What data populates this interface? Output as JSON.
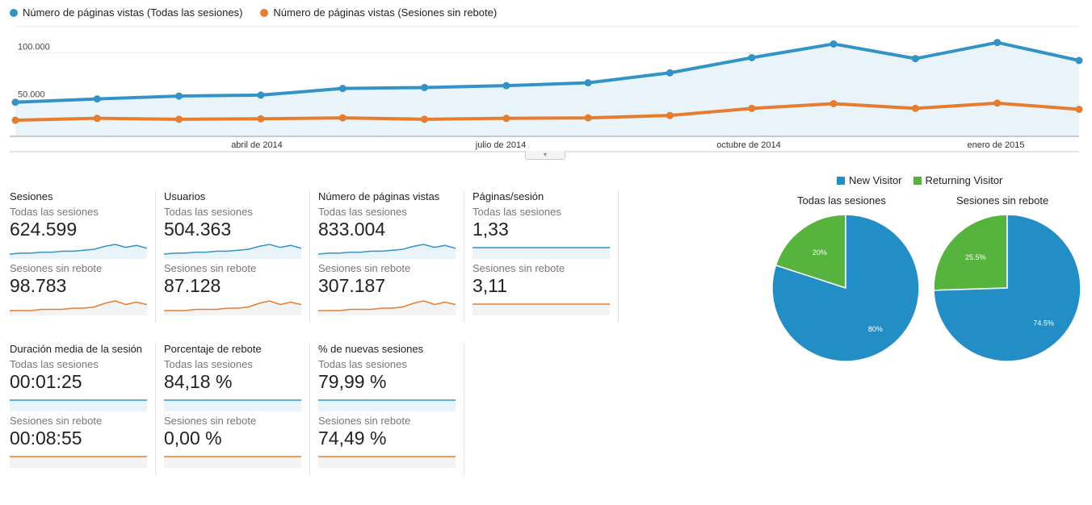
{
  "legend": {
    "series1": "Número de páginas vistas (Todas las sesiones)",
    "series2": "Número de páginas vistas (Sesiones sin rebote)"
  },
  "colors": {
    "blue": "#3393c7",
    "orange": "#e47d30",
    "pie_blue": "#238ec6",
    "pie_green": "#56b33d",
    "area": "#e9f3fa"
  },
  "chart_data": {
    "type": "line",
    "x_labels": [
      "abril de 2014",
      "julio de 2014",
      "octubre de 2014",
      "enero de 2015"
    ],
    "y_ticks": [
      "100.000",
      "50.000"
    ],
    "y_tick_values": [
      100000,
      50000
    ],
    "series": [
      {
        "name": "Número de páginas vistas (Todas las sesiones)",
        "values": [
          36000,
          39500,
          42500,
          43500,
          50500,
          51500,
          53500,
          56500,
          67000,
          83000,
          97500,
          82000,
          99000,
          80000
        ]
      },
      {
        "name": "Número de páginas vistas (Sesiones sin rebote)",
        "values": [
          17000,
          19000,
          18000,
          18500,
          19500,
          18000,
          19000,
          19500,
          22000,
          29500,
          34500,
          29500,
          35000,
          28500
        ]
      }
    ]
  },
  "metrics": [
    {
      "name": "Sesiones",
      "seg_all": "Todas las sesiones",
      "val_all": "624.599",
      "seg_nb": "Sesiones sin rebote",
      "val_nb": "98.783",
      "spark_all": [
        2,
        3,
        3,
        4,
        4,
        5,
        5,
        6,
        7,
        10,
        12,
        9,
        11,
        8
      ],
      "spark_nb": [
        2,
        2,
        2,
        3,
        3,
        3,
        4,
        4,
        5,
        8,
        10,
        7,
        9,
        7
      ]
    },
    {
      "name": "Usuarios",
      "seg_all": "Todas las sesiones",
      "val_all": "504.363",
      "seg_nb": "Sesiones sin rebote",
      "val_nb": "87.128",
      "spark_all": [
        2,
        3,
        3,
        4,
        4,
        5,
        5,
        6,
        7,
        10,
        12,
        9,
        11,
        8
      ],
      "spark_nb": [
        2,
        2,
        2,
        3,
        3,
        3,
        4,
        4,
        5,
        8,
        10,
        7,
        9,
        7
      ]
    },
    {
      "name": "Número de páginas vistas",
      "seg_all": "Todas las sesiones",
      "val_all": "833.004",
      "seg_nb": "Sesiones sin rebote",
      "val_nb": "307.187",
      "spark_all": [
        2,
        3,
        3,
        4,
        4,
        5,
        5,
        6,
        7,
        10,
        12,
        9,
        11,
        8
      ],
      "spark_nb": [
        2,
        2,
        2,
        3,
        3,
        3,
        4,
        4,
        5,
        8,
        10,
        7,
        9,
        7
      ]
    },
    {
      "name": "Páginas/sesión",
      "seg_all": "Todas las sesiones",
      "val_all": "1,33",
      "seg_nb": "Sesiones sin rebote",
      "val_nb": "3,11",
      "spark_all": [
        6,
        6,
        6,
        5.8,
        5.8,
        5.8,
        5.7,
        5.7,
        5.7,
        5.7,
        5.6,
        5.6,
        5.6,
        5.6
      ],
      "spark_nb": [
        6,
        6,
        6,
        5.9,
        5.9,
        5.8,
        5.8,
        5.7,
        5.7,
        5.6,
        5.6,
        5.5,
        5.5,
        5.4
      ]
    },
    {
      "name": "Duración media de la sesión",
      "seg_all": "Todas las sesiones",
      "val_all": "00:01:25",
      "seg_nb": "Sesiones sin rebote",
      "val_nb": "00:08:55",
      "spark_all": [
        6,
        6.2,
        5.8,
        6,
        5.9,
        5.5,
        5.8,
        5.6,
        6,
        5.8,
        5.7,
        5.9,
        5.6,
        5.5
      ],
      "spark_nb": [
        5.5,
        5.6,
        5.5,
        5.6,
        5.6,
        5.7,
        5.9,
        5.7,
        5.7,
        5.8,
        5.6,
        5.7,
        5.6,
        5.6
      ]
    },
    {
      "name": "Porcentaje de rebote",
      "seg_all": "Todas las sesiones",
      "val_all": "84,18 %",
      "seg_nb": "Sesiones sin rebote",
      "val_nb": "0,00 %",
      "spark_all": [
        6,
        6,
        6,
        6,
        6,
        6,
        6,
        6,
        6,
        6,
        6,
        6,
        6,
        6
      ],
      "spark_nb": [
        5,
        5,
        5,
        5,
        5,
        5,
        5,
        5,
        5,
        5,
        5,
        5,
        5,
        5
      ]
    },
    {
      "name": "% de nuevas sesiones",
      "seg_all": "Todas las sesiones",
      "val_all": "79,99 %",
      "seg_nb": "Sesiones sin rebote",
      "val_nb": "74,49 %",
      "spark_all": [
        6,
        6,
        6,
        6,
        6,
        6,
        6,
        6,
        6,
        6.1,
        6,
        6,
        6,
        6
      ],
      "spark_nb": [
        5.5,
        5.5,
        5.6,
        5.5,
        5.6,
        5.6,
        5.6,
        5.6,
        5.7,
        5.6,
        5.7,
        5.6,
        5.6,
        5.7
      ]
    }
  ],
  "pies": {
    "legend": [
      "New Visitor",
      "Returning Visitor"
    ],
    "charts": [
      {
        "title": "Todas las sesiones",
        "new_pct": 80,
        "ret_pct": 20,
        "new_label": "80%",
        "ret_label": "20%"
      },
      {
        "title": "Sesiones sin rebote",
        "new_pct": 74.5,
        "ret_pct": 25.5,
        "new_label": "74.5%",
        "ret_label": "25.5%"
      }
    ]
  }
}
